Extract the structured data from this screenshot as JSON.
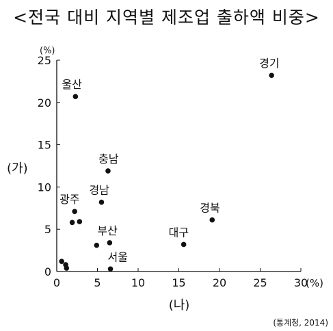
{
  "chart_data": {
    "type": "scatter",
    "title": "<전국 대비 지역별 제조업 출하액 비중>",
    "xlabel": "(나)",
    "ylabel": "(가)",
    "x_unit": "(%)",
    "y_unit": "(%)",
    "xlim": [
      0,
      30
    ],
    "ylim": [
      0,
      25
    ],
    "xticks": [
      0,
      5,
      10,
      15,
      20,
      25,
      30
    ],
    "yticks": [
      0,
      5,
      10,
      15,
      20,
      25
    ],
    "tick_labels_x": [
      "0",
      "5",
      "10",
      "15",
      "20",
      "25",
      "30"
    ],
    "tick_labels_y": [
      "0",
      "5",
      "10",
      "15",
      "20",
      "25"
    ],
    "grid": false,
    "source": "(통계청, 2014)",
    "points": [
      {
        "label": "경기",
        "x": 26.4,
        "y": 23.2
      },
      {
        "label": "울산",
        "x": 2.3,
        "y": 20.7
      },
      {
        "label": "충남",
        "x": 6.3,
        "y": 11.9
      },
      {
        "label": "경남",
        "x": 5.5,
        "y": 8.2
      },
      {
        "label": "광주",
        "x": 2.2,
        "y": 7.1
      },
      {
        "label": "경북",
        "x": 19.1,
        "y": 6.1
      },
      {
        "label": "대구",
        "x": 15.6,
        "y": 3.2
      },
      {
        "label": "부산",
        "x": 6.5,
        "y": 3.4
      },
      {
        "label": "서울",
        "x": 6.6,
        "y": 0.3
      },
      {
        "label": "",
        "x": 1.9,
        "y": 5.8
      },
      {
        "label": "",
        "x": 2.8,
        "y": 5.9
      },
      {
        "label": "",
        "x": 4.9,
        "y": 3.1
      },
      {
        "label": "",
        "x": 0.6,
        "y": 1.2
      },
      {
        "label": "",
        "x": 1.1,
        "y": 0.8
      },
      {
        "label": "",
        "x": 1.2,
        "y": 0.4
      }
    ],
    "colors": {
      "marker": "#111111",
      "axis": "#111111",
      "text": "#111111"
    }
  }
}
